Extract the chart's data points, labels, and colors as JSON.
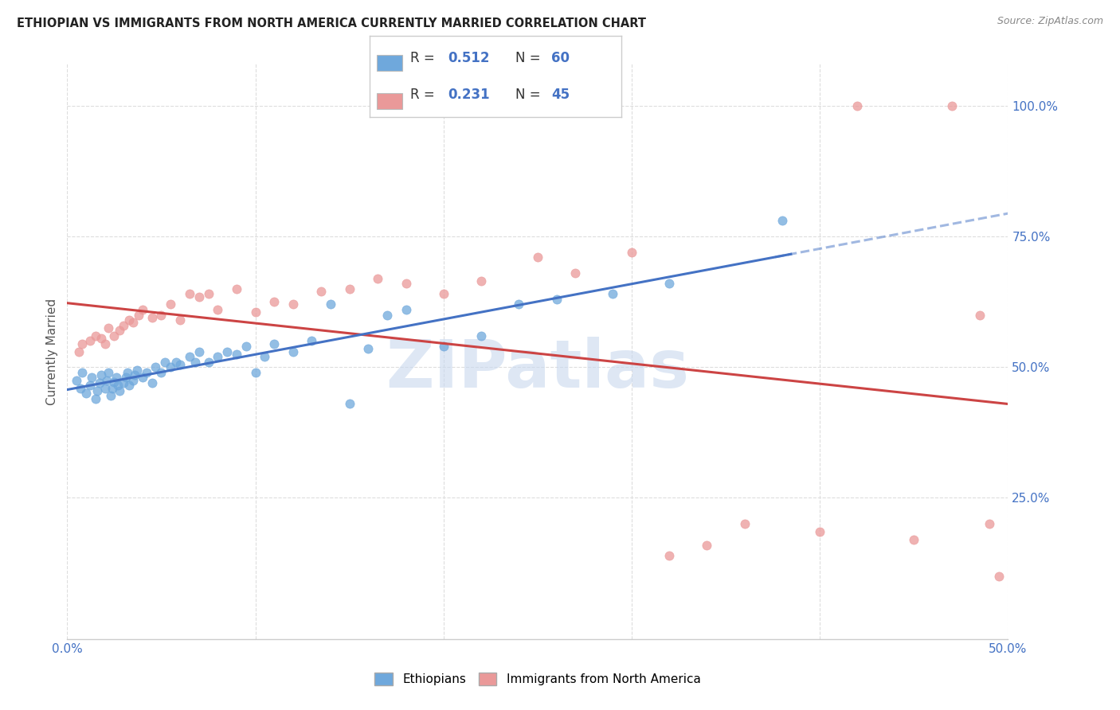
{
  "title": "ETHIOPIAN VS IMMIGRANTS FROM NORTH AMERICA CURRENTLY MARRIED CORRELATION CHART",
  "source": "Source: ZipAtlas.com",
  "ylabel": "Currently Married",
  "xlim": [
    0.0,
    0.5
  ],
  "ylim": [
    -0.02,
    1.08
  ],
  "y_tick_labels_right": [
    "100.0%",
    "75.0%",
    "50.0%",
    "25.0%"
  ],
  "y_tick_vals_right": [
    1.0,
    0.75,
    0.5,
    0.25
  ],
  "ethiopian_color": "#6FA8DC",
  "ethiopian_edge_color": "#6FA8DC",
  "immigrants_color": "#EA9999",
  "immigrants_edge_color": "#EA9999",
  "ethiopian_line_color": "#4472C4",
  "immigrants_line_color": "#CC4444",
  "R_ethiopian": "0.512",
  "N_ethiopian": "60",
  "R_immigrants": "0.231",
  "N_immigrants": "45",
  "legend_label_1": "Ethiopians",
  "legend_label_2": "Immigrants from North America",
  "watermark": "ZIPatlas",
  "watermark_color": "#C8D8EE",
  "eth_x": [
    0.005,
    0.007,
    0.008,
    0.01,
    0.012,
    0.013,
    0.015,
    0.016,
    0.017,
    0.018,
    0.02,
    0.021,
    0.022,
    0.023,
    0.024,
    0.025,
    0.026,
    0.027,
    0.028,
    0.03,
    0.031,
    0.032,
    0.033,
    0.035,
    0.036,
    0.037,
    0.04,
    0.042,
    0.045,
    0.047,
    0.05,
    0.052,
    0.055,
    0.058,
    0.06,
    0.065,
    0.068,
    0.07,
    0.075,
    0.08,
    0.085,
    0.09,
    0.095,
    0.1,
    0.105,
    0.11,
    0.12,
    0.13,
    0.14,
    0.15,
    0.16,
    0.17,
    0.18,
    0.2,
    0.22,
    0.24,
    0.26,
    0.29,
    0.32,
    0.38
  ],
  "eth_y": [
    0.475,
    0.46,
    0.49,
    0.45,
    0.465,
    0.48,
    0.44,
    0.455,
    0.47,
    0.485,
    0.46,
    0.475,
    0.49,
    0.445,
    0.46,
    0.472,
    0.48,
    0.465,
    0.455,
    0.47,
    0.48,
    0.49,
    0.465,
    0.475,
    0.485,
    0.495,
    0.48,
    0.49,
    0.47,
    0.5,
    0.49,
    0.51,
    0.5,
    0.51,
    0.505,
    0.52,
    0.51,
    0.53,
    0.51,
    0.52,
    0.53,
    0.525,
    0.54,
    0.49,
    0.52,
    0.545,
    0.53,
    0.55,
    0.62,
    0.43,
    0.535,
    0.6,
    0.61,
    0.54,
    0.56,
    0.62,
    0.63,
    0.64,
    0.66,
    0.78
  ],
  "imm_x": [
    0.006,
    0.008,
    0.012,
    0.015,
    0.018,
    0.02,
    0.022,
    0.025,
    0.028,
    0.03,
    0.033,
    0.035,
    0.038,
    0.04,
    0.045,
    0.05,
    0.055,
    0.06,
    0.065,
    0.07,
    0.075,
    0.08,
    0.09,
    0.1,
    0.11,
    0.12,
    0.135,
    0.15,
    0.165,
    0.18,
    0.2,
    0.22,
    0.25,
    0.27,
    0.3,
    0.32,
    0.34,
    0.36,
    0.4,
    0.42,
    0.45,
    0.47,
    0.485,
    0.49,
    0.495
  ],
  "imm_y": [
    0.53,
    0.545,
    0.55,
    0.56,
    0.555,
    0.545,
    0.575,
    0.56,
    0.57,
    0.58,
    0.59,
    0.585,
    0.6,
    0.61,
    0.595,
    0.6,
    0.62,
    0.59,
    0.64,
    0.635,
    0.64,
    0.61,
    0.65,
    0.605,
    0.625,
    0.62,
    0.645,
    0.65,
    0.67,
    0.66,
    0.64,
    0.665,
    0.71,
    0.68,
    0.72,
    0.14,
    0.16,
    0.2,
    0.185,
    1.0,
    0.17,
    1.0,
    0.6,
    0.2,
    0.1
  ]
}
